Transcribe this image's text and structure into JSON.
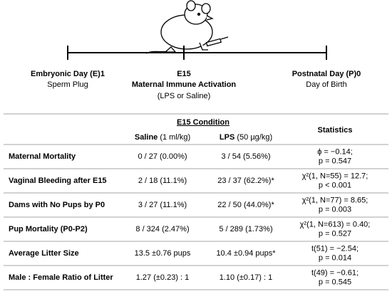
{
  "timeline": {
    "start": {
      "title": "Embryonic Day (E)1",
      "subtitle": "Sperm Plug"
    },
    "middle": {
      "title": "E15",
      "subtitle": "Maternal Immune Activation",
      "note": "(LPS or Saline)"
    },
    "end": {
      "title": "Postnatal Day (P)0",
      "subtitle": "Day of Birth"
    }
  },
  "table": {
    "group_header": "E15 Condition",
    "stats_header": "Statistics",
    "saline_header": {
      "name": "Saline",
      "dose": "(1 ml/kg)"
    },
    "lps_header": {
      "name": "LPS",
      "dose": "(50 µg/kg)"
    },
    "rows": [
      {
        "label": "Maternal Mortality",
        "saline": "0 / 27 (0.00%)",
        "lps": "3 / 54 (5.56%)",
        "stats": [
          "ϕ = −0.14;",
          "p = 0.547"
        ]
      },
      {
        "label": "Vaginal Bleeding after E15",
        "saline": "2 / 18 (11.1%)",
        "lps": "23 / 37 (62.2%)*",
        "stats": [
          "χ²(1, N=55) = 12.7;",
          "p < 0.001"
        ]
      },
      {
        "label": "Dams with No Pups by P0",
        "saline": "3 / 27 (11.1%)",
        "lps": "22 / 50 (44.0%)*",
        "stats": [
          "χ²(1, N=77) = 8.65;",
          "p = 0.003"
        ]
      },
      {
        "label": "Pup Mortality (P0-P2)",
        "saline": "8 / 324 (2.47%)",
        "lps": "5 / 289 (1.73%)",
        "stats": [
          "χ²(1, N=613) = 0.40;",
          "p = 0.527"
        ]
      },
      {
        "label": "Average Litter Size",
        "saline": "13.5 ±0.76 pups",
        "lps": "10.4 ±0.94 pups*",
        "stats": [
          "t(51) = −2.54;",
          "p = 0.014"
        ]
      },
      {
        "label": "Male : Female Ratio of Litter",
        "saline": "1.27 (±0.23) : 1",
        "lps": "1.10 (±0.17) : 1",
        "stats": [
          "t(49) = −0.61;",
          "p = 0.545"
        ]
      }
    ]
  }
}
